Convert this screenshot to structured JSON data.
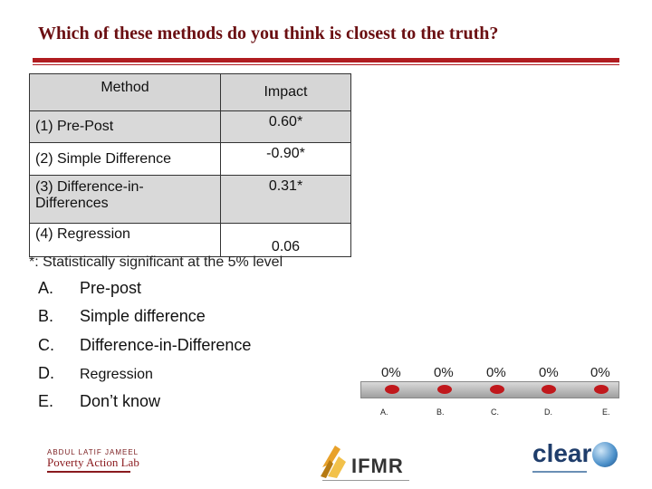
{
  "slide": {
    "title": "Which of these methods do you think is closest to the truth?"
  },
  "table": {
    "headers": {
      "method": "Method",
      "impact": "Impact"
    },
    "rows": [
      {
        "method": "(1) Pre-Post",
        "impact": "0.60*"
      },
      {
        "method": "(2) Simple Difference",
        "impact": "-0.90*"
      },
      {
        "method": "(3) Difference-in-Differences",
        "impact": "0.31*"
      },
      {
        "method": "(4) Regression",
        "impact": "0.06"
      }
    ]
  },
  "footnote": "*: Statistically significant at the 5% level",
  "options": [
    {
      "letter": "A.",
      "text": "Pre-post"
    },
    {
      "letter": "B.",
      "text": "Simple difference"
    },
    {
      "letter": "C.",
      "text": "Difference-in-Difference"
    },
    {
      "letter": "D.",
      "text": "Regression"
    },
    {
      "letter": "E.",
      "text": "Don’t know"
    }
  ],
  "poll": {
    "results": [
      {
        "label": "A.",
        "percent": "0%"
      },
      {
        "label": "B.",
        "percent": "0%"
      },
      {
        "label": "C.",
        "percent": "0%"
      },
      {
        "label": "D.",
        "percent": "0%"
      },
      {
        "label": "E.",
        "percent": "0%"
      }
    ],
    "bar_color": "#c0181c"
  },
  "logos": {
    "jpal_line1": "ABDUL LATIF JAMEEL",
    "jpal_line2": "Poverty Action Lab",
    "ifmr": "IFMR",
    "clear": "clear"
  },
  "colors": {
    "title": "#6b0f12",
    "rule": "#b01c20",
    "accent": "#c0181c"
  }
}
